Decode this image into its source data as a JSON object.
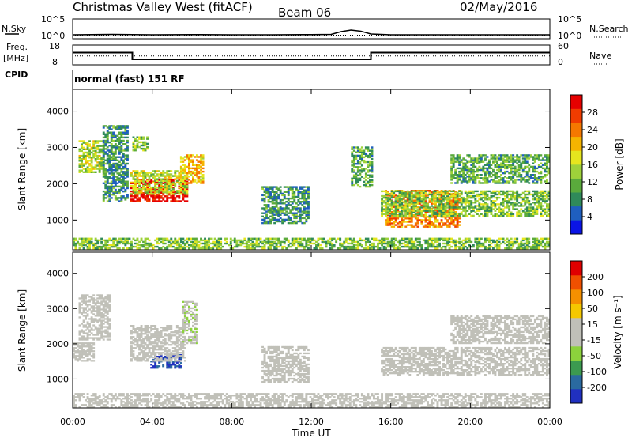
{
  "header": {
    "station": "Christmas Valley West (fitACF)",
    "beam": "Beam 06",
    "date": "02/May/2016"
  },
  "panels": {
    "nsky_label": "N.Sky",
    "nsearch_label": "N.Search",
    "freq_label_1": "Freq.",
    "freq_label_2": "[MHz]",
    "nave_label": "Nave",
    "cpid_label": "CPID",
    "cpid_value": "normal (fast) 151 RF",
    "nsky_ticks": [
      "10^5",
      "10^0"
    ],
    "nsearch_ticks": [
      "10^5",
      "10^0"
    ],
    "freq_ticks": [
      "18",
      "8"
    ],
    "nave_ticks": [
      "60",
      "0"
    ]
  },
  "colorbars": {
    "power": {
      "label": "Power [dB]",
      "ticks": [
        "28",
        "24",
        "20",
        "16",
        "12",
        "8",
        "4"
      ],
      "colors": [
        "#0a14e6",
        "#1f5fbf",
        "#2f8a5a",
        "#5aaa3c",
        "#9ed23a",
        "#e6e61e",
        "#f5b400",
        "#f57800",
        "#f03c00",
        "#e60000"
      ]
    },
    "velocity": {
      "label": "Velocity [m s⁻¹]",
      "ticks": [
        "200",
        "100",
        "50",
        "15",
        "-15",
        "-50",
        "-100",
        "-200"
      ],
      "colors": [
        "#2030c0",
        "#2a6aa0",
        "#3c9a50",
        "#8cd23c",
        "#c0c0b8",
        "#c0c0b8",
        "#f5c800",
        "#f59000",
        "#f05000",
        "#e00000"
      ]
    }
  },
  "chart_data": [
    {
      "type": "line",
      "title": "N.Sky / N.Search",
      "x": [
        0,
        2,
        4,
        6,
        8,
        10,
        12,
        13,
        13.5,
        14,
        14.5,
        15,
        16,
        18,
        20,
        22,
        24
      ],
      "series": [
        {
          "name": "N.Sky",
          "values": [
            1.0,
            1.1,
            1.0,
            1.05,
            1.0,
            1.0,
            1.05,
            1.1,
            1.8,
            2.2,
            1.9,
            1.2,
            1.0,
            1.0,
            1.0,
            1.0,
            1.0
          ]
        },
        {
          "name": "N.Search",
          "values": [
            0.9,
            0.9,
            0.9,
            0.9,
            0.9,
            0.9,
            0.9,
            0.9,
            0.9,
            0.9,
            0.9,
            0.9,
            0.9,
            0.9,
            0.9,
            0.9,
            0.9
          ]
        }
      ],
      "ylim": [
        0,
        5
      ]
    },
    {
      "type": "line",
      "title": "Freq. / Nave",
      "x": [
        0,
        3,
        3,
        15,
        15,
        24
      ],
      "series": [
        {
          "name": "Freq.",
          "values": [
            14.2,
            14.2,
            10.8,
            10.8,
            14.2,
            14.2
          ]
        },
        {
          "name": "Nave",
          "values": [
            12.5,
            12.5,
            12.5,
            12.5,
            12.5,
            12.5
          ]
        }
      ],
      "ylim": [
        8,
        18
      ]
    },
    {
      "type": "heatmap",
      "title": "Power",
      "xlabel": "Time UT",
      "ylabel": "Slant Range [km]",
      "x_ticks": [
        "00:00",
        "04:00",
        "08:00",
        "12:00",
        "16:00",
        "20:00",
        "00:00"
      ],
      "y_ticks": [
        1000,
        2000,
        3000,
        4000
      ],
      "xlim": [
        0,
        24
      ],
      "ylim": [
        180,
        4600
      ],
      "zlim": [
        0,
        30
      ],
      "regions": [
        {
          "t": [
            2.9,
            5.7
          ],
          "r": [
            1500,
            2100
          ],
          "v": 29
        },
        {
          "t": [
            2.9,
            5.7
          ],
          "r": [
            1700,
            2350
          ],
          "v": 15
        },
        {
          "t": [
            0.3,
            1.6
          ],
          "r": [
            2300,
            3200
          ],
          "v": 14
        },
        {
          "t": [
            5.4,
            6.5
          ],
          "r": [
            2000,
            2800
          ],
          "v": 19
        },
        {
          "t": [
            3.0,
            3.8
          ],
          "r": [
            2900,
            3300
          ],
          "v": 12
        },
        {
          "t": [
            1.5,
            2.8
          ],
          "r": [
            1500,
            3600
          ],
          "v": 8
        },
        {
          "t": [
            15.7,
            19.5
          ],
          "r": [
            800,
            1800
          ],
          "v": 22
        },
        {
          "t": [
            15.5,
            24.0
          ],
          "r": [
            1100,
            1800
          ],
          "v": 12
        },
        {
          "t": [
            19.0,
            24.0
          ],
          "r": [
            2000,
            2800
          ],
          "v": 10
        },
        {
          "t": [
            9.5,
            11.8
          ],
          "r": [
            900,
            1900
          ],
          "v": 8
        },
        {
          "t": [
            14.0,
            15.0
          ],
          "r": [
            1900,
            3000
          ],
          "v": 10
        },
        {
          "t": [
            0.0,
            24.0
          ],
          "r": [
            200,
            500
          ],
          "v": 12
        }
      ]
    },
    {
      "type": "heatmap",
      "title": "Velocity",
      "xlabel": "Time UT",
      "ylabel": "Slant Range [km]",
      "x_ticks": [
        "00:00",
        "04:00",
        "08:00",
        "12:00",
        "16:00",
        "20:00",
        "00:00"
      ],
      "y_ticks": [
        1000,
        2000,
        3000,
        4000
      ],
      "xlim": [
        0,
        24
      ],
      "ylim": [
        180,
        4600
      ],
      "zlim": [
        -250,
        250
      ],
      "regions": [
        {
          "t": [
            3.9,
            5.4
          ],
          "r": [
            1300,
            1700
          ],
          "v": -200
        },
        {
          "t": [
            2.9,
            5.6
          ],
          "r": [
            1500,
            2500
          ],
          "v": -30
        },
        {
          "t": [
            5.5,
            6.2
          ],
          "r": [
            2000,
            3200
          ],
          "v": -40
        },
        {
          "t": [
            0.3,
            1.9
          ],
          "r": [
            2100,
            3400
          ],
          "v": 0
        },
        {
          "t": [
            0.0,
            1.0
          ],
          "r": [
            1500,
            2000
          ],
          "v": 0
        },
        {
          "t": [
            15.5,
            24.0
          ],
          "r": [
            1100,
            1900
          ],
          "v": 0
        },
        {
          "t": [
            19.0,
            24.0
          ],
          "r": [
            2000,
            2800
          ],
          "v": 0
        },
        {
          "t": [
            9.5,
            11.8
          ],
          "r": [
            900,
            1900
          ],
          "v": 0
        },
        {
          "t": [
            0.0,
            24.0
          ],
          "r": [
            200,
            600
          ],
          "v": 20
        }
      ]
    }
  ]
}
